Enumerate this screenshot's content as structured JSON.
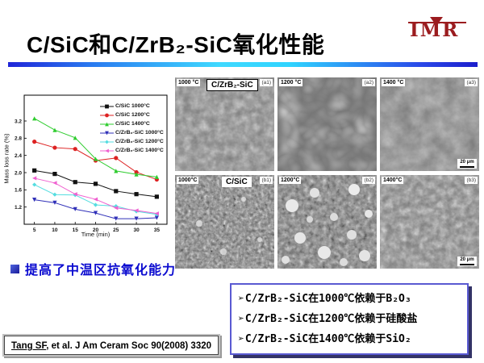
{
  "header": {
    "title": "C/SiC和C/ZrB₂-SiC氧化性能",
    "logo_text": "IMR"
  },
  "colors": {
    "rule_gradient_ends": "#2026d8",
    "rule_gradient_mid": "#3fd9ff",
    "logo_red": "#9b1c1f",
    "takeaway_blue": "#0b0bd0",
    "points_box_border": "#5a5ad2",
    "points_box_shadow": "#333366"
  },
  "chart_data": {
    "type": "line",
    "title": "",
    "xlabel": "Time (min)",
    "ylabel": "Mass loss rate (%)",
    "x": [
      5,
      10,
      15,
      20,
      25,
      30,
      35
    ],
    "x_ticks": [
      5,
      10,
      15,
      20,
      25,
      30,
      35
    ],
    "y_ticks": [
      1.2,
      1.6,
      2.0,
      2.4,
      2.8,
      3.2
    ],
    "xlim": [
      2.5,
      37.5
    ],
    "ylim": [
      0.8,
      3.8
    ],
    "grid": false,
    "legend_position": "upper right",
    "series": [
      {
        "name": "C/SiC 1000°C",
        "color": "#111111",
        "marker": "square",
        "values": [
          2.05,
          1.97,
          1.78,
          1.74,
          1.57,
          1.5,
          1.44
        ]
      },
      {
        "name": "C/SiC 1200°C",
        "color": "#dd2222",
        "marker": "circle",
        "values": [
          2.72,
          2.58,
          2.55,
          2.28,
          2.34,
          2.01,
          1.84
        ]
      },
      {
        "name": "C/SiC 1400°C",
        "color": "#2ecc2e",
        "marker": "triangle-up",
        "values": [
          3.26,
          2.99,
          2.81,
          2.32,
          2.04,
          1.96,
          1.9
        ]
      },
      {
        "name": "C/ZrB₂-SiC 1000°C",
        "color": "#3030b8",
        "marker": "triangle-down",
        "values": [
          1.37,
          1.3,
          1.15,
          1.06,
          0.93,
          0.93,
          0.95
        ]
      },
      {
        "name": "C/ZrB₂-SiC 1200°C",
        "color": "#55dde0",
        "marker": "diamond",
        "values": [
          1.72,
          1.49,
          1.48,
          1.25,
          1.22,
          1.1,
          1.03
        ]
      },
      {
        "name": "C/ZrB₂-SiC 1400°C",
        "color": "#f060d0",
        "marker": "triangle-left",
        "values": [
          1.87,
          1.76,
          1.5,
          1.38,
          1.18,
          1.12,
          1.05
        ]
      }
    ]
  },
  "sem": {
    "rows": [
      {
        "material": "C/ZrB₂-SiC",
        "panels": [
          {
            "temp": "1000 °C",
            "id": "(a1)"
          },
          {
            "temp": "1200 °C",
            "id": "(a2)"
          },
          {
            "temp": "1400 °C",
            "id": "(a3)",
            "scale": "20 μm"
          }
        ]
      },
      {
        "material": "C/SiC",
        "panels": [
          {
            "temp": "1000°C",
            "id": "(b1)"
          },
          {
            "temp": "1200°C",
            "id": "(b2)"
          },
          {
            "temp": "1400°C",
            "id": "(b3)",
            "scale": "20 μm"
          }
        ]
      }
    ]
  },
  "takeaway": {
    "text": "提高了中温区抗氧化能力"
  },
  "points_box": {
    "items": [
      {
        "marker": "➢",
        "text": "C/ZrB₂-SiC在1000℃依赖于B₂O₃"
      },
      {
        "marker": "➢",
        "text": "C/ZrB₂-SiC在1200℃依赖于硅酸盐"
      },
      {
        "marker": "➢",
        "text": "C/ZrB₂-SiC在1400℃依赖于SiO₂"
      }
    ]
  },
  "footer": {
    "citation_author": "Tang SF",
    "citation_rest": ", et al. J Am Ceram Soc 90(2008) 3320"
  }
}
